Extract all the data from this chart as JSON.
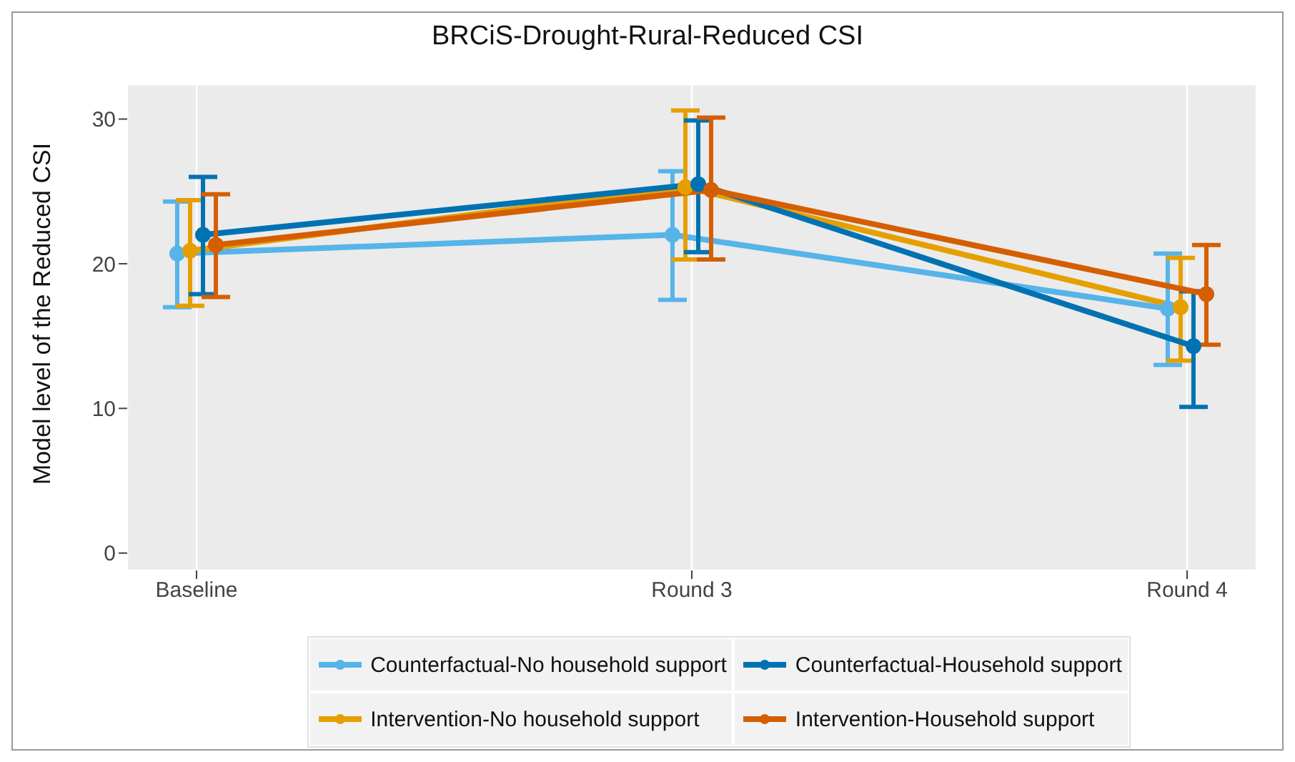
{
  "chart_data": {
    "type": "line",
    "title": "BRCiS-Drought-Rural-Reduced CSI",
    "ylabel": "Model level of the Reduced CSI",
    "categories": [
      "Baseline",
      "Round 3",
      "Round 4"
    ],
    "ylim": [
      -1.2,
      32.4
    ],
    "yticks": [
      0,
      10,
      20,
      30
    ],
    "grid": true,
    "legend": "bottom",
    "marker": "circle",
    "line_style": "solid",
    "series": [
      {
        "name": "Counterfactual-No household support",
        "color": "#56b4e9",
        "values": [
          20.7,
          22.0,
          16.9
        ],
        "errors": [
          [
            17.0,
            24.3
          ],
          [
            17.5,
            26.4
          ],
          [
            13.0,
            20.7
          ]
        ]
      },
      {
        "name": "Intervention-No household support",
        "color": "#e69f00",
        "values": [
          20.9,
          25.3,
          17.0
        ],
        "errors": [
          [
            17.1,
            24.4
          ],
          [
            20.3,
            30.6
          ],
          [
            13.3,
            20.4
          ]
        ]
      },
      {
        "name": "Counterfactual-Household support",
        "color": "#0072b2",
        "values": [
          22.0,
          25.5,
          14.3
        ],
        "errors": [
          [
            17.9,
            26.0
          ],
          [
            20.8,
            29.9
          ],
          [
            10.1,
            18.1
          ]
        ]
      },
      {
        "name": "Intervention-Household support",
        "color": "#d55e00",
        "values": [
          21.3,
          25.1,
          17.9
        ],
        "errors": [
          [
            17.7,
            24.8
          ],
          [
            20.3,
            30.1
          ],
          [
            14.4,
            21.3
          ]
        ]
      }
    ]
  }
}
